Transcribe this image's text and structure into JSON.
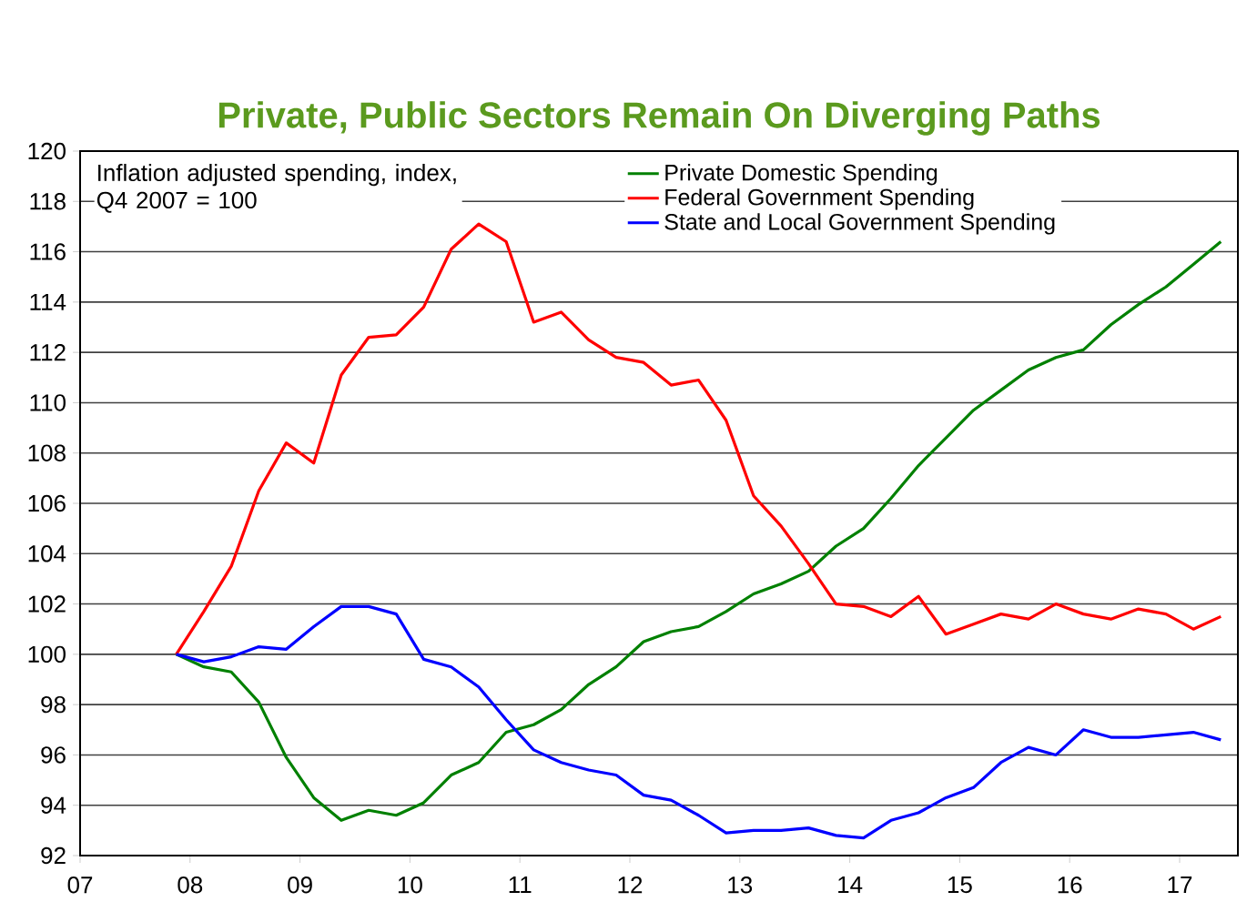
{
  "chart_data": {
    "type": "line",
    "title": "Private, Public Sectors Remain On Diverging Paths",
    "annotations": [
      "Inflation adjusted spending, index, Q4 2007 = 100"
    ],
    "x": [
      2007.875,
      2008.125,
      2008.375,
      2008.625,
      2008.875,
      2009.125,
      2009.375,
      2009.625,
      2009.875,
      2010.125,
      2010.375,
      2010.625,
      2010.875,
      2011.125,
      2011.375,
      2011.625,
      2011.875,
      2012.125,
      2012.375,
      2012.625,
      2012.875,
      2013.125,
      2013.375,
      2013.625,
      2013.875,
      2014.125,
      2014.375,
      2014.625,
      2014.875,
      2015.125,
      2015.375,
      2015.625,
      2015.875,
      2016.125,
      2016.375,
      2016.625,
      2016.875,
      2017.125,
      2017.375
    ],
    "series": [
      {
        "name": "Private Domestic Spending",
        "color": "#008000",
        "values": [
          100,
          99.5,
          99.3,
          98.1,
          95.9,
          94.3,
          93.4,
          93.8,
          93.6,
          94.1,
          95.2,
          95.7,
          96.9,
          97.2,
          97.8,
          98.8,
          99.5,
          100.5,
          100.9,
          101.1,
          101.7,
          102.4,
          102.8,
          103.3,
          104.3,
          105.0,
          106.2,
          107.5,
          108.6,
          109.7,
          110.5,
          111.3,
          111.8,
          112.1,
          113.1,
          113.9,
          114.6,
          115.5,
          116.4
        ]
      },
      {
        "name": "Federal Government Spending",
        "color": "#ff0000",
        "values": [
          100,
          101.7,
          103.5,
          106.5,
          108.4,
          107.6,
          111.1,
          112.6,
          112.7,
          113.8,
          116.1,
          117.1,
          116.4,
          113.2,
          113.6,
          112.5,
          111.8,
          111.6,
          110.7,
          110.9,
          109.3,
          106.3,
          105.1,
          103.6,
          102.0,
          101.9,
          101.5,
          102.3,
          100.8,
          101.2,
          101.6,
          101.4,
          102.0,
          101.6,
          101.4,
          101.8,
          101.6,
          101.0,
          101.5
        ]
      },
      {
        "name": "State and Local Government Spending",
        "color": "#0000ff",
        "values": [
          100,
          99.7,
          99.9,
          100.3,
          100.2,
          101.1,
          101.9,
          101.9,
          101.6,
          99.8,
          99.5,
          98.7,
          97.4,
          96.2,
          95.7,
          95.4,
          95.2,
          94.4,
          94.2,
          93.6,
          92.9,
          93.0,
          93.0,
          93.1,
          92.8,
          92.7,
          93.4,
          93.7,
          94.3,
          94.7,
          95.7,
          96.3,
          96.0,
          97.0,
          96.7,
          96.7,
          96.8,
          96.9,
          96.6
        ]
      }
    ],
    "xlim": [
      2007,
      2017.53
    ],
    "ylim": [
      92,
      120
    ],
    "xticks": [
      {
        "value": 2007,
        "label": "07"
      },
      {
        "value": 2008,
        "label": "08"
      },
      {
        "value": 2009,
        "label": "09"
      },
      {
        "value": 2010,
        "label": "10"
      },
      {
        "value": 2011,
        "label": "11"
      },
      {
        "value": 2012,
        "label": "12"
      },
      {
        "value": 2013,
        "label": "13"
      },
      {
        "value": 2014,
        "label": "14"
      },
      {
        "value": 2015,
        "label": "15"
      },
      {
        "value": 2016,
        "label": "16"
      },
      {
        "value": 2017,
        "label": "17"
      }
    ],
    "yticks": [
      92,
      94,
      96,
      98,
      100,
      102,
      104,
      106,
      108,
      110,
      112,
      114,
      116,
      118,
      120
    ],
    "grid": "y",
    "legend": "top",
    "marker": "none",
    "line_style": "solid"
  }
}
